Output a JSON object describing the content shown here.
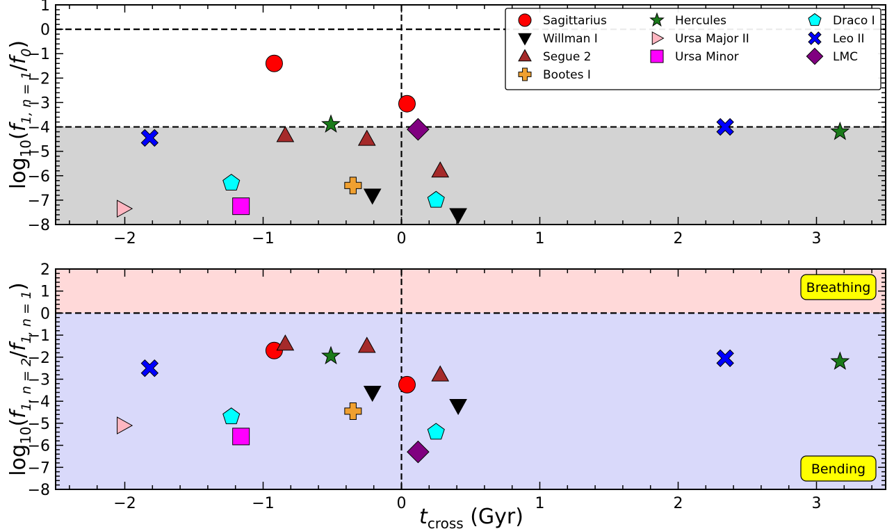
{
  "figure": {
    "xlabel_main": "t",
    "xlabel_sub": "cross",
    "xlabel_unit": " (Gyr)"
  },
  "chart_data": [
    {
      "type": "scatter",
      "xlim": [
        -2.5,
        3.5
      ],
      "ylim": [
        -8,
        1
      ],
      "xticks": [
        -2,
        -1,
        0,
        1,
        2,
        3
      ],
      "yticks": [
        1,
        0,
        -1,
        -2,
        -3,
        -4,
        -5,
        -6,
        -7,
        -8
      ],
      "xtick_labels": [
        "−2",
        "−1",
        "0",
        "1",
        "2",
        "3"
      ],
      "ytick_labels": [
        "1",
        "0",
        "−1",
        "−2",
        "−3",
        "−4",
        "−5",
        "−6",
        "−7",
        "−8"
      ],
      "ylabel": {
        "prefix": "log",
        "base": "10",
        "open": "(",
        "f1": "f",
        "f1sub": "1, n = 1",
        "slash": "/",
        "f2": "f",
        "f2sub": "0",
        "close": ")"
      },
      "xlabel": "",
      "hlines": [
        0,
        -4
      ],
      "vlines": [
        0
      ],
      "shaded_regions": [
        {
          "y_from": -8,
          "y_to": -4,
          "color": "#d3d3d3"
        }
      ],
      "grid": false,
      "legend": {
        "placement": "top-right",
        "columns": 3,
        "entries": [
          "Sagittarius",
          "Willman I",
          "Segue 2",
          "Bootes I",
          "Hercules",
          "Ursa Major II",
          "Ursa Minor",
          "Draco I",
          "Leo II",
          "LMC"
        ]
      },
      "series": [
        {
          "name": "Sagittarius",
          "marker": "circle",
          "color": "#ff0000",
          "points": [
            {
              "x": -0.92,
              "y": -1.4
            },
            {
              "x": 0.04,
              "y": -3.05
            }
          ]
        },
        {
          "name": "Willman I",
          "marker": "triangle-down",
          "color": "#000000",
          "points": [
            {
              "x": -0.21,
              "y": -6.8
            },
            {
              "x": 0.41,
              "y": -7.6
            }
          ]
        },
        {
          "name": "Segue 2",
          "marker": "triangle-up",
          "color": "#a52a2a",
          "points": [
            {
              "x": -0.84,
              "y": -4.35
            },
            {
              "x": -0.25,
              "y": -4.5
            },
            {
              "x": 0.28,
              "y": -5.8
            }
          ]
        },
        {
          "name": "Bootes I",
          "marker": "plus",
          "color": "#f0a030",
          "points": [
            {
              "x": -0.35,
              "y": -6.4
            }
          ]
        },
        {
          "name": "Hercules",
          "marker": "star",
          "color": "#1a7a1a",
          "points": [
            {
              "x": -0.51,
              "y": -3.9
            },
            {
              "x": 3.17,
              "y": -4.2
            }
          ]
        },
        {
          "name": "Ursa Major II",
          "marker": "triangle-right",
          "color": "#ffb6c1",
          "points": [
            {
              "x": -2.01,
              "y": -7.35
            }
          ]
        },
        {
          "name": "Ursa Minor",
          "marker": "square",
          "color": "#ff00ff",
          "points": [
            {
              "x": -1.16,
              "y": -7.25
            }
          ]
        },
        {
          "name": "Draco I",
          "marker": "pentagon",
          "color": "#00ffff",
          "points": [
            {
              "x": -1.23,
              "y": -6.3
            },
            {
              "x": 0.25,
              "y": -7.0
            }
          ]
        },
        {
          "name": "Leo II",
          "marker": "x",
          "color": "#0000ff",
          "points": [
            {
              "x": -1.82,
              "y": -4.45
            },
            {
              "x": 2.34,
              "y": -4.0
            }
          ]
        },
        {
          "name": "LMC",
          "marker": "diamond",
          "color": "#800080",
          "points": [
            {
              "x": 0.12,
              "y": -4.1
            }
          ]
        }
      ]
    },
    {
      "type": "scatter",
      "xlim": [
        -2.5,
        3.5
      ],
      "ylim": [
        -8,
        2
      ],
      "xticks": [
        -2,
        -1,
        0,
        1,
        2,
        3
      ],
      "yticks": [
        2,
        1,
        0,
        -1,
        -2,
        -3,
        -4,
        -5,
        -6,
        -7,
        -8
      ],
      "xtick_labels": [
        "−2",
        "−1",
        "0",
        "1",
        "2",
        "3"
      ],
      "ytick_labels": [
        "2",
        "1",
        "0",
        "−1",
        "−2",
        "−3",
        "−4",
        "−5",
        "−6",
        "−7",
        "−8"
      ],
      "ylabel": {
        "prefix": "log",
        "base": "10",
        "open": "(",
        "f1": "f",
        "f1sub": "1, n = 2",
        "slash": "/",
        "f2": "f",
        "f2sub": "1, n = 1",
        "close": ")"
      },
      "xlabel": "t_cross (Gyr)",
      "hlines": [
        0
      ],
      "vlines": [
        0
      ],
      "shaded_regions": [
        {
          "y_from": 0,
          "y_to": 2,
          "color": "#ffd9d9"
        },
        {
          "y_from": -8,
          "y_to": 0,
          "color": "#d9d9fa"
        }
      ],
      "annotations": [
        {
          "text": "Breathing",
          "placement": "top-right",
          "box_color": "#ffff00"
        },
        {
          "text": "Bending",
          "placement": "bottom-right",
          "box_color": "#ffff00"
        }
      ],
      "grid": false,
      "series": [
        {
          "name": "Sagittarius",
          "marker": "circle",
          "color": "#ff0000",
          "points": [
            {
              "x": -0.92,
              "y": -1.7
            },
            {
              "x": 0.04,
              "y": -3.25
            }
          ]
        },
        {
          "name": "Willman I",
          "marker": "triangle-down",
          "color": "#000000",
          "points": [
            {
              "x": -0.21,
              "y": -3.6
            },
            {
              "x": 0.41,
              "y": -4.2
            }
          ]
        },
        {
          "name": "Segue 2",
          "marker": "triangle-up",
          "color": "#a52a2a",
          "points": [
            {
              "x": -0.84,
              "y": -1.4
            },
            {
              "x": -0.25,
              "y": -1.5
            },
            {
              "x": 0.28,
              "y": -2.8
            }
          ]
        },
        {
          "name": "Bootes I",
          "marker": "plus",
          "color": "#f0a030",
          "points": [
            {
              "x": -0.35,
              "y": -4.45
            }
          ]
        },
        {
          "name": "Hercules",
          "marker": "star",
          "color": "#1a7a1a",
          "points": [
            {
              "x": -0.51,
              "y": -1.95
            },
            {
              "x": 3.17,
              "y": -2.2
            }
          ]
        },
        {
          "name": "Ursa Major II",
          "marker": "triangle-right",
          "color": "#ffb6c1",
          "points": [
            {
              "x": -2.01,
              "y": -5.1
            }
          ]
        },
        {
          "name": "Ursa Minor",
          "marker": "square",
          "color": "#ff00ff",
          "points": [
            {
              "x": -1.16,
              "y": -5.6
            }
          ]
        },
        {
          "name": "Draco I",
          "marker": "pentagon",
          "color": "#00ffff",
          "points": [
            {
              "x": -1.23,
              "y": -4.7
            },
            {
              "x": 0.25,
              "y": -5.4
            }
          ]
        },
        {
          "name": "Leo II",
          "marker": "x",
          "color": "#0000ff",
          "points": [
            {
              "x": -1.82,
              "y": -2.5
            },
            {
              "x": 2.34,
              "y": -2.05
            }
          ]
        },
        {
          "name": "LMC",
          "marker": "diamond",
          "color": "#800080",
          "points": [
            {
              "x": 0.12,
              "y": -6.3
            }
          ]
        }
      ]
    }
  ]
}
